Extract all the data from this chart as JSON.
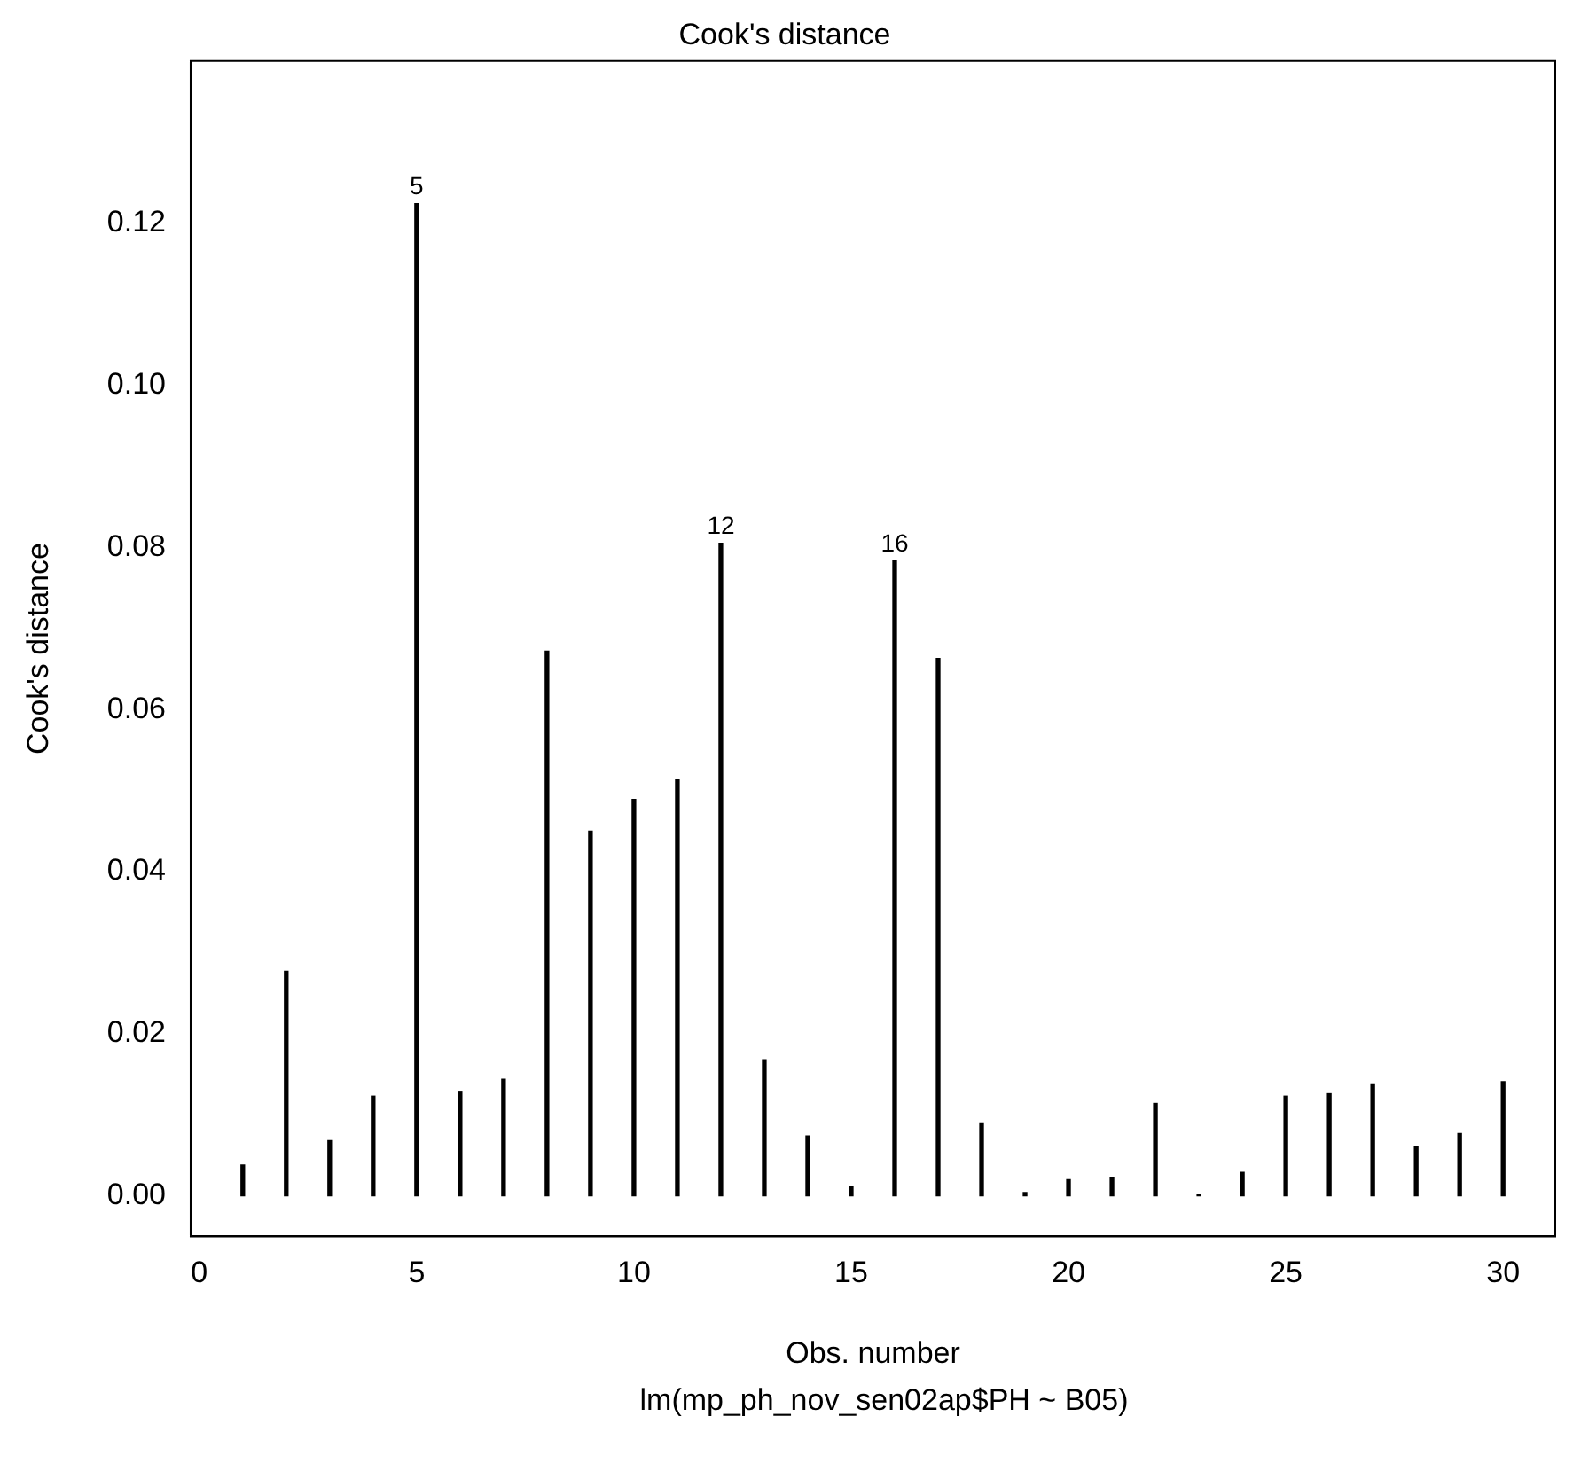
{
  "chart_data": {
    "type": "bar",
    "title": "Cook's distance",
    "xlabel": "Obs. number",
    "ylabel": "Cook's distance",
    "x": [
      1,
      2,
      3,
      4,
      5,
      6,
      7,
      8,
      9,
      10,
      11,
      12,
      13,
      14,
      15,
      16,
      17,
      18,
      19,
      20,
      21,
      22,
      23,
      24,
      25,
      26,
      27,
      28,
      29,
      30
    ],
    "values": [
      0.0038,
      0.0277,
      0.0068,
      0.0123,
      0.1224,
      0.0129,
      0.0144,
      0.0672,
      0.045,
      0.0489,
      0.0513,
      0.0805,
      0.0168,
      0.0074,
      0.0011,
      0.0784,
      0.0663,
      0.009,
      0.0004,
      0.002,
      0.0023,
      0.0114,
      0.0001,
      0.0029,
      0.0123,
      0.0126,
      0.0138,
      0.0061,
      0.0077,
      0.0141
    ],
    "color": "#000000",
    "xlim": [
      -0.2,
      31.2
    ],
    "xticks": [
      0,
      5,
      10,
      15,
      20,
      25,
      30
    ],
    "ylim": [
      -0.005,
      0.14
    ],
    "yticks": [
      {
        "value": 0,
        "label": "0.00"
      },
      {
        "value": 0.02,
        "label": "0.02"
      },
      {
        "value": 0.04,
        "label": "0.04"
      },
      {
        "value": 0.06,
        "label": "0.06"
      },
      {
        "value": 0.08,
        "label": "0.08"
      },
      {
        "value": 0.1,
        "label": "0.10"
      },
      {
        "value": 0.12,
        "label": "0.12"
      }
    ],
    "grid": false,
    "legend": false,
    "annotations": [
      {
        "text": "5",
        "x": 5,
        "y": 0.1224
      },
      {
        "text": "12",
        "x": 12,
        "y": 0.0805
      },
      {
        "text": "16",
        "x": 16,
        "y": 0.0784
      },
      "lm(mp_ph_nov_sen02ap$PH ~ B05)"
    ]
  }
}
